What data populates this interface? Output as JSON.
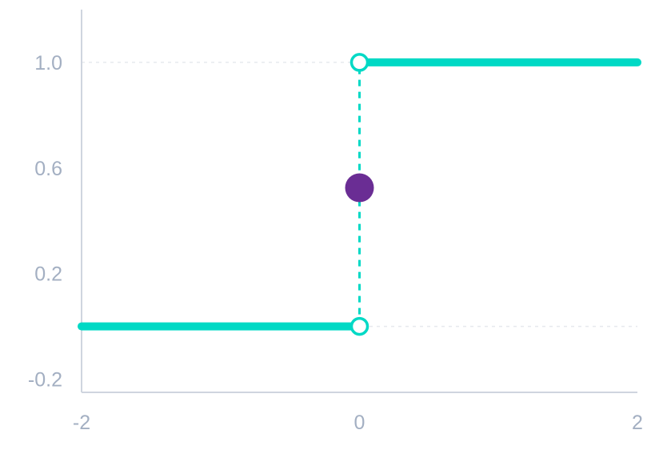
{
  "chart_data": {
    "type": "line",
    "title": "",
    "xlabel": "",
    "ylabel": "",
    "xlim": [
      -2,
      2
    ],
    "ylim": [
      -0.25,
      1.2
    ],
    "x_ticks": [
      {
        "value": -2,
        "label": "-2"
      },
      {
        "value": 0,
        "label": "0"
      },
      {
        "value": 2,
        "label": "2"
      }
    ],
    "y_ticks": [
      {
        "value": -0.2,
        "label": "-0.2"
      },
      {
        "value": 0.2,
        "label": "0.2"
      },
      {
        "value": 0.6,
        "label": "0.6"
      },
      {
        "value": 1.0,
        "label": "1.0"
      }
    ],
    "grid": "dashed horizontal at y=0 and y=1",
    "grid_y": [
      0,
      1
    ],
    "series": [
      {
        "segments": [
          {
            "x": [
              -2,
              0
            ],
            "y": [
              0,
              0
            ]
          },
          {
            "x": [
              0,
              2
            ],
            "y": [
              1,
              1
            ]
          }
        ]
      }
    ],
    "discontinuity": {
      "x": 0,
      "y_from": 0,
      "y_to": 1,
      "style": "dashed"
    },
    "open_points": [
      {
        "x": 0,
        "y": 0
      },
      {
        "x": 0,
        "y": 1
      }
    ],
    "filled_point": {
      "x": 0,
      "y": 0.525
    },
    "colors": {
      "line": "#00d9c5",
      "filled_point": "#6a2d94",
      "axis": "#cfd5df",
      "tick_label": "#a3afc2",
      "grid": "#e6e9ee"
    }
  }
}
